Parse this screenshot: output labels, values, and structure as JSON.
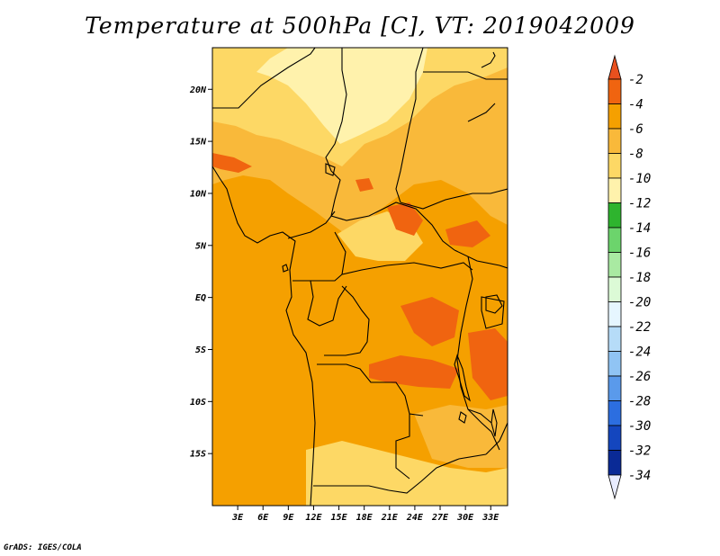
{
  "title": "Temperature at 500hPa [C], VT: 2019042009",
  "credit": "GrADS: IGES/COLA",
  "map": {
    "variable": "Temperature at 500hPa",
    "units": "C",
    "valid_time": "2019042009",
    "lon_range": [
      0,
      35
    ],
    "lat_range": [
      -20,
      24
    ],
    "lat_ticks": [
      {
        "value": 20,
        "label": "20N"
      },
      {
        "value": 15,
        "label": "15N"
      },
      {
        "value": 10,
        "label": "10N"
      },
      {
        "value": 5,
        "label": "5N"
      },
      {
        "value": 0,
        "label": "EQ"
      },
      {
        "value": -5,
        "label": "5S"
      },
      {
        "value": -10,
        "label": "10S"
      },
      {
        "value": -15,
        "label": "15S"
      }
    ],
    "lon_ticks": [
      {
        "value": 3,
        "label": "3E"
      },
      {
        "value": 6,
        "label": "6E"
      },
      {
        "value": 9,
        "label": "9E"
      },
      {
        "value": 12,
        "label": "12E"
      },
      {
        "value": 15,
        "label": "15E"
      },
      {
        "value": 18,
        "label": "18E"
      },
      {
        "value": 21,
        "label": "21E"
      },
      {
        "value": 24,
        "label": "24E"
      },
      {
        "value": 27,
        "label": "27E"
      },
      {
        "value": 30,
        "label": "30E"
      },
      {
        "value": 33,
        "label": "33E"
      }
    ]
  },
  "colorbar": {
    "max_arrow_color": "#e8501e",
    "min_arrow_color": "#e8ecff",
    "levels": [
      {
        "label": "-2",
        "color": "#f06410"
      },
      {
        "label": "-4",
        "color": "#f5a000"
      },
      {
        "label": "-6",
        "color": "#f9b93a"
      },
      {
        "label": "-8",
        "color": "#fdd865"
      },
      {
        "label": "-10",
        "color": "#fff2ac"
      },
      {
        "label": "-12",
        "color": "#2eb42e"
      },
      {
        "label": "-14",
        "color": "#6cd46c"
      },
      {
        "label": "-16",
        "color": "#a9eaa2"
      },
      {
        "label": "-18",
        "color": "#dcfad6"
      },
      {
        "label": "-20",
        "color": "#e6f6ff"
      },
      {
        "label": "-22",
        "color": "#b6dcf8"
      },
      {
        "label": "-24",
        "color": "#90c4f4"
      },
      {
        "label": "-26",
        "color": "#5a9aeb"
      },
      {
        "label": "-28",
        "color": "#2c6ee0"
      },
      {
        "label": "-30",
        "color": "#1446be"
      },
      {
        "label": "-32",
        "color": "#0a2a96"
      },
      {
        "label": "-34",
        "color": "#041662"
      }
    ]
  }
}
